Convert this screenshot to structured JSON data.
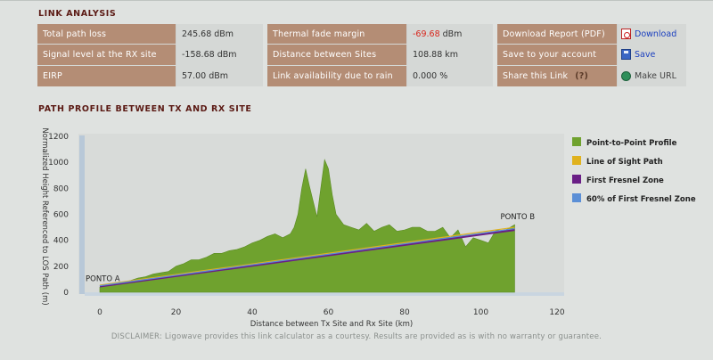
{
  "link_analysis": {
    "title": "LINK ANALYSIS",
    "box1": [
      {
        "label": "Total path loss",
        "value": "245.68 dBm"
      },
      {
        "label": "Signal level at the RX site",
        "value": "-158.68 dBm"
      },
      {
        "label": "EIRP",
        "value": "57.00 dBm"
      }
    ],
    "box2": [
      {
        "label": "Thermal fade margin",
        "value": "-69.68",
        "unit": "dBm"
      },
      {
        "label": "Distance between Sites",
        "value": "108.88 km"
      },
      {
        "label": "Link availability due to rain",
        "value": "0.000 %"
      }
    ],
    "box3": [
      {
        "label": "Download Report (PDF)",
        "action": "Download",
        "icon": "pdf-icon"
      },
      {
        "label": "Save to your account",
        "action": "Save",
        "icon": "save-icon"
      },
      {
        "label": "Share this Link",
        "help": "(?)",
        "action": "Make URL",
        "icon": "globe-icon"
      }
    ]
  },
  "path_profile": {
    "title": "PATH PROFILE BETWEEN TX AND RX SITE"
  },
  "chart_data": {
    "type": "area",
    "xlabel": "Distance between Tx Site and Rx Site (km)",
    "ylabel": "Normalized Height Referenced to LOS Path (m)",
    "xlim": [
      -5,
      120
    ],
    "ylim": [
      0,
      1200
    ],
    "xticks": [
      "0",
      "20",
      "40",
      "60",
      "80",
      "100",
      "120"
    ],
    "yticks": [
      "0",
      "200",
      "400",
      "600",
      "800",
      "1000",
      "1200"
    ],
    "grid": false,
    "legend_position": "right",
    "annotations": [
      {
        "text": "PONTO A",
        "x": 0,
        "y": 60
      },
      {
        "text": "PONTO B",
        "x": 108.88,
        "y": 480
      }
    ],
    "series": [
      {
        "name": "Point-to-Point Profile",
        "color": "#6fa22e",
        "x": [
          0,
          2,
          4,
          6,
          8,
          10,
          12,
          14,
          16,
          18,
          20,
          22,
          24,
          26,
          28,
          30,
          32,
          34,
          36,
          38,
          40,
          42,
          44,
          46,
          48,
          50,
          51,
          52,
          53,
          54,
          55,
          56,
          57,
          58,
          59,
          60,
          61,
          62,
          63,
          64,
          66,
          68,
          70,
          72,
          74,
          76,
          78,
          80,
          82,
          84,
          86,
          88,
          90,
          92,
          94,
          96,
          98,
          100,
          102,
          104,
          106,
          108.88
        ],
        "y": [
          40,
          50,
          55,
          70,
          90,
          110,
          120,
          140,
          150,
          160,
          200,
          220,
          250,
          250,
          270,
          300,
          300,
          320,
          330,
          350,
          380,
          400,
          430,
          450,
          420,
          450,
          500,
          600,
          800,
          950,
          820,
          700,
          580,
          800,
          1020,
          950,
          750,
          600,
          560,
          520,
          500,
          480,
          530,
          470,
          500,
          520,
          470,
          480,
          500,
          500,
          470,
          470,
          500,
          420,
          480,
          350,
          420,
          400,
          380,
          480,
          470,
          520
        ]
      },
      {
        "name": "Line of Sight Path",
        "color": "#e0b21e",
        "x": [
          0,
          108.88
        ],
        "y": [
          55,
          500
        ]
      },
      {
        "name": "First Fresnel Zone",
        "color": "#6a1f86",
        "x": [
          0,
          108.88
        ],
        "y": [
          45,
          480
        ]
      },
      {
        "name": "60% of First Fresnel Zone",
        "color": "#5b8fd6",
        "x": [
          0,
          108.88
        ],
        "y": [
          50,
          490
        ]
      }
    ]
  },
  "disclaimer": "DISCLAIMER: Ligowave provides this link calculator as a courtesy.  Results are provided as is with no warranty or guarantee."
}
